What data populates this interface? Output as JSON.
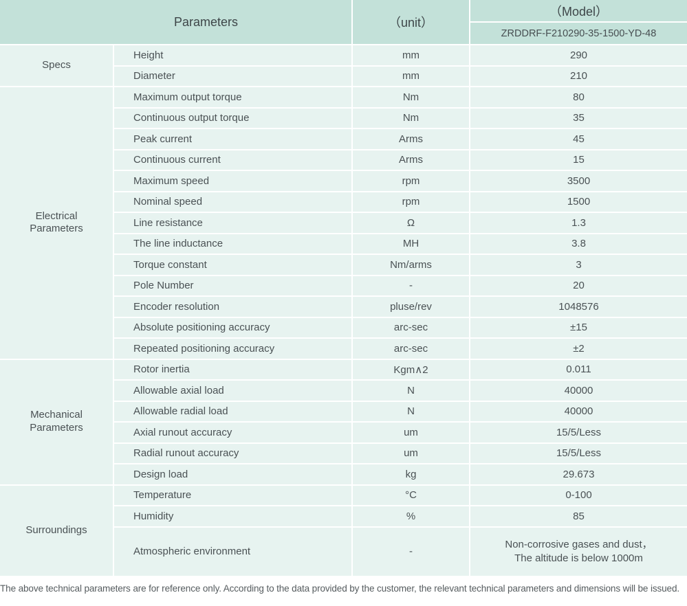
{
  "header": {
    "parameters_label": "Parameters",
    "unit_label": "（unit）",
    "model_label": "（Model）",
    "model_value": "ZRDDRF-F210290-35-1500-YD-48"
  },
  "groups": [
    {
      "name": "Specs",
      "rows": [
        {
          "param": "Height",
          "unit": "mm",
          "value": "290"
        },
        {
          "param": "Diameter",
          "unit": "mm",
          "value": "210"
        }
      ]
    },
    {
      "name": "Electrical Parameters",
      "rows": [
        {
          "param": "Maximum output torque",
          "unit": "Nm",
          "value": "80"
        },
        {
          "param": "Continuous output torque",
          "unit": "Nm",
          "value": "35"
        },
        {
          "param": "Peak current",
          "unit": "Arms",
          "value": "45"
        },
        {
          "param": "Continuous current",
          "unit": "Arms",
          "value": "15"
        },
        {
          "param": "Maximum speed",
          "unit": "rpm",
          "value": "3500"
        },
        {
          "param": "Nominal speed",
          "unit": "rpm",
          "value": "1500"
        },
        {
          "param": "Line resistance",
          "unit": "Ω",
          "value": "1.3"
        },
        {
          "param": "The line inductance",
          "unit": "MH",
          "value": "3.8"
        },
        {
          "param": "Torque constant",
          "unit": "Nm/arms",
          "value": "3"
        },
        {
          "param": "Pole Number",
          "unit": "-",
          "value": "20"
        },
        {
          "param": "Encoder resolution",
          "unit": "pluse/rev",
          "value": "1048576"
        },
        {
          "param": "Absolute positioning accuracy",
          "unit": "arc-sec",
          "value": "±15"
        },
        {
          "param": "Repeated positioning accuracy",
          "unit": "arc-sec",
          "value": "±2"
        }
      ]
    },
    {
      "name": "Mechanical Parameters",
      "rows": [
        {
          "param": "Rotor inertia",
          "unit": "Kgm∧2",
          "value": "0.011"
        },
        {
          "param": "Allowable axial load",
          "unit": "N",
          "value": "40000"
        },
        {
          "param": "Allowable radial load",
          "unit": "N",
          "value": "40000"
        },
        {
          "param": "Axial runout accuracy",
          "unit": "um",
          "value": "15/5/Less"
        },
        {
          "param": "Radial runout accuracy",
          "unit": "um",
          "value": "15/5/Less"
        },
        {
          "param": "Design load",
          "unit": "kg",
          "value": "29.673"
        }
      ]
    },
    {
      "name": "Surroundings",
      "rows": [
        {
          "param": "Temperature",
          "unit": "°C",
          "value": "0-100"
        },
        {
          "param": "Humidity",
          "unit": "%",
          "value": "85"
        },
        {
          "param": "Atmospheric environment",
          "unit": "-",
          "value": "Non-corrosive gases and dust，\nThe altitude is below 1000m",
          "tall": true
        }
      ]
    }
  ],
  "footer": {
    "note": "The above technical parameters are for reference only. According to the data provided by the customer, the relevant technical parameters and dimensions will be issued."
  },
  "colors": {
    "header_bg": "#c3e1d9",
    "body_bg": "#e7f3f0",
    "divider": "#ffffff",
    "text": "#4a5154"
  }
}
